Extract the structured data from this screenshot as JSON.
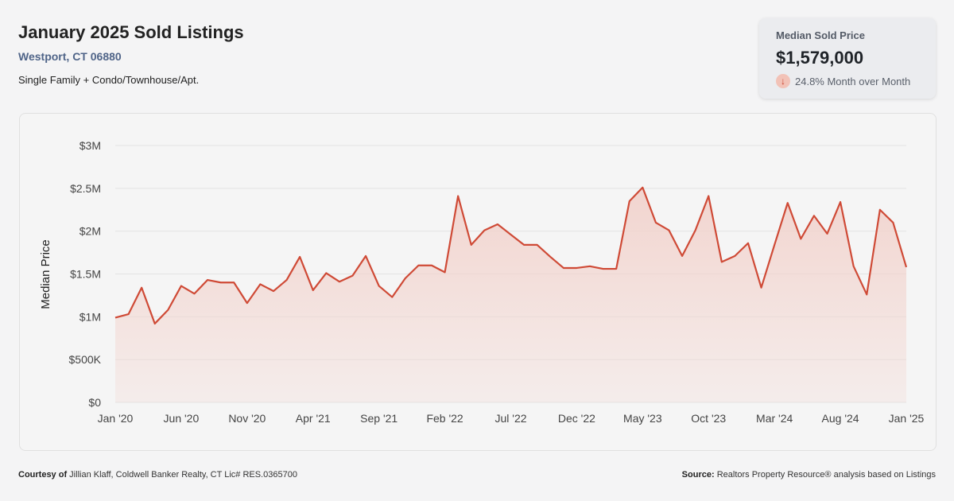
{
  "header": {
    "title": "January 2025 Sold Listings",
    "location": "Westport, CT 06880",
    "subtitle": "Single Family + Condo/Townhouse/Apt."
  },
  "kpi": {
    "label": "Median Sold Price",
    "value": "$1,579,000",
    "change": "24.8% Month over Month",
    "direction": "down",
    "icon": "arrow-down-icon",
    "accent": "#c9412b"
  },
  "footer": {
    "courtesy_label": "Courtesy of",
    "courtesy_text": " Jillian Klaff, Coldwell Banker Realty, CT Lic# RES.0365700",
    "source_label": "Source:",
    "source_text": " Realtors Property Resource® analysis based on Listings"
  },
  "chart_data": {
    "type": "area",
    "title": "",
    "xlabel": "",
    "ylabel": "Median Price",
    "ylim": [
      0,
      3000000
    ],
    "yticks": [
      0,
      500000,
      1000000,
      1500000,
      2000000,
      2500000,
      3000000
    ],
    "ytick_labels": [
      "$0",
      "$500K",
      "$1M",
      "$1.5M",
      "$2M",
      "$2.5M",
      "$3M"
    ],
    "x_range": [
      "Jan 2020",
      "Jan 2025"
    ],
    "xtick_labels": [
      "Jan '20",
      "Jun '20",
      "Nov '20",
      "Apr '21",
      "Sep '21",
      "Feb '22",
      "Jul '22",
      "Dec '22",
      "May '23",
      "Oct '23",
      "Mar '24",
      "Aug '24",
      "Jan '25"
    ],
    "grid": true,
    "line_color": "#cf4a36",
    "fill_color": "#f2d3cd",
    "series": [
      {
        "values": [
          990000,
          1030000,
          1340000,
          920000,
          1080000,
          1360000,
          1270000,
          1430000,
          1400000,
          1400000,
          1160000,
          1380000,
          1300000,
          1430000,
          1700000,
          1310000,
          1510000,
          1410000,
          1480000,
          1710000,
          1360000,
          1230000,
          1450000,
          1600000,
          1600000,
          1520000,
          2410000,
          1840000,
          2010000,
          2080000,
          1960000,
          1840000,
          1840000,
          1700000,
          1570000,
          1570000,
          1590000,
          1560000,
          1560000,
          2350000,
          2510000,
          2100000,
          2010000,
          1710000,
          2010000,
          2410000,
          1640000,
          1710000,
          1860000,
          1340000,
          1840000,
          2330000,
          1910000,
          2180000,
          1970000,
          2340000,
          1590000,
          1260000,
          2250000,
          2100000,
          1579000
        ]
      }
    ]
  }
}
